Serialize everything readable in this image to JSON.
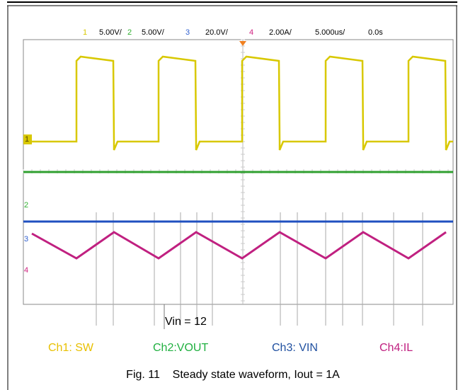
{
  "scope": {
    "settings": [
      {
        "channel": "1",
        "scale": "5.00V/"
      },
      {
        "channel": "2",
        "scale": "5.00V/"
      },
      {
        "channel": "3",
        "scale": "20.0V/"
      },
      {
        "channel": "4",
        "scale": "2.00A/"
      }
    ],
    "timebase": "5.000us/",
    "delay": "0.0s",
    "markers": [
      "1",
      "2",
      "3",
      "4"
    ]
  },
  "annotation": "Vin = 12",
  "legend": [
    "Ch1: SW",
    "Ch2:VOUT",
    "Ch3: VIN",
    "Ch4:IL"
  ],
  "caption": "Fig. 11    Steady state waveform, Iout = 1A"
}
